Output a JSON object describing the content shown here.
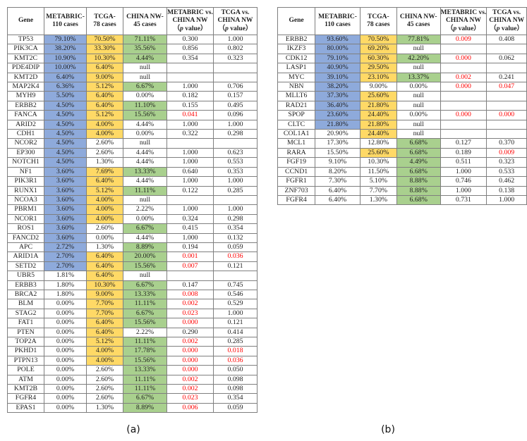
{
  "colors": {
    "metabric_fill": "#8EAADB",
    "tcga_fill": "#FFD966",
    "china_fill": "#A9D08E",
    "significant_red": "#FF0000",
    "grid_border": "#7f7f7f"
  },
  "tables": [
    {
      "name": "gene-mutation-table-a",
      "caption": "(a)",
      "headers": [
        {
          "lines": [
            "Gene"
          ]
        },
        {
          "lines": [
            "METABRIC-",
            "110 cases"
          ]
        },
        {
          "lines": [
            "TCGA-",
            "78 cases"
          ]
        },
        {
          "lines": [
            "CHINA NW-",
            "45 cases"
          ]
        },
        {
          "lines": [
            "METABRIC vs.",
            "CHINA NW",
            "（p value）"
          ]
        },
        {
          "lines": [
            "TCGA vs.",
            "CHINA NW",
            "（p value）"
          ]
        }
      ],
      "rows": [
        {
          "gene": "TP53",
          "metabric": "79.10%",
          "tcga": "70.50%",
          "china": "71.11%",
          "p1": "0.300",
          "p2": "1.000",
          "fills": "mtc",
          "red": ""
        },
        {
          "gene": "PIK3CA",
          "metabric": "38.20%",
          "tcga": "33.30%",
          "china": "35.56%",
          "p1": "0.856",
          "p2": "0.802",
          "fills": "mtc",
          "red": ""
        },
        {
          "gene": "KMT2C",
          "metabric": "10.90%",
          "tcga": "10.30%",
          "china": "4.44%",
          "p1": "0.354",
          "p2": "0.323",
          "fills": "mtc",
          "red": ""
        },
        {
          "gene": "PDE4DIP",
          "metabric": "10.00%",
          "tcga": "6.40%",
          "china": "null",
          "p1": "",
          "p2": "",
          "fills": "mt",
          "red": ""
        },
        {
          "gene": "KMT2D",
          "metabric": "6.40%",
          "tcga": "9.00%",
          "china": "null",
          "p1": "",
          "p2": "",
          "fills": "mt",
          "red": ""
        },
        {
          "gene": "MAP2K4",
          "metabric": "6.36%",
          "tcga": "5.12%",
          "china": "6.67%",
          "p1": "1.000",
          "p2": "0.706",
          "fills": "mtc",
          "red": ""
        },
        {
          "gene": "MYH9",
          "metabric": "5.50%",
          "tcga": "6.40%",
          "china": "0.00%",
          "p1": "0.182",
          "p2": "0.157",
          "fills": "mt",
          "red": ""
        },
        {
          "gene": "ERBB2",
          "metabric": "4.50%",
          "tcga": "6.40%",
          "china": "11.10%",
          "p1": "0.155",
          "p2": "0.495",
          "fills": "mtc",
          "red": ""
        },
        {
          "gene": "FANCA",
          "metabric": "4.50%",
          "tcga": "5.12%",
          "china": "15.56%",
          "p1": "0.041",
          "p2": "0.096",
          "fills": "mtc",
          "red": "1"
        },
        {
          "gene": "ARID2",
          "metabric": "4.50%",
          "tcga": "4.00%",
          "china": "4.44%",
          "p1": "1.000",
          "p2": "1.000",
          "fills": "mt",
          "red": ""
        },
        {
          "gene": "CDH1",
          "metabric": "4.50%",
          "tcga": "4.00%",
          "china": "0.00%",
          "p1": "0.322",
          "p2": "0.298",
          "fills": "mt",
          "red": ""
        },
        {
          "gene": "NCOR2",
          "metabric": "4.50%",
          "tcga": "2.60%",
          "china": "null",
          "p1": "",
          "p2": "",
          "fills": "m",
          "red": ""
        },
        {
          "gene": "EP300",
          "metabric": "4.50%",
          "tcga": "2.60%",
          "china": "4.44%",
          "p1": "1.000",
          "p2": "0.623",
          "fills": "m",
          "red": ""
        },
        {
          "gene": "NOTCH1",
          "metabric": "4.50%",
          "tcga": "1.30%",
          "china": "4.44%",
          "p1": "1.000",
          "p2": "0.553",
          "fills": "m",
          "red": ""
        },
        {
          "gene": "NF1",
          "metabric": "3.60%",
          "tcga": "7.69%",
          "china": "13.33%",
          "p1": "0.640",
          "p2": "0.353",
          "fills": "mtc",
          "red": ""
        },
        {
          "gene": "PIK3R1",
          "metabric": "3.60%",
          "tcga": "6.40%",
          "china": "4.44%",
          "p1": "1.000",
          "p2": "1.000",
          "fills": "mt",
          "red": ""
        },
        {
          "gene": "RUNX1",
          "metabric": "3.60%",
          "tcga": "5.12%",
          "china": "11.11%",
          "p1": "0.122",
          "p2": "0.285",
          "fills": "mtc",
          "red": ""
        },
        {
          "gene": "NCOA3",
          "metabric": "3.60%",
          "tcga": "4.00%",
          "china": "null",
          "p1": "",
          "p2": "",
          "fills": "mt",
          "red": ""
        },
        {
          "gene": "PBRM1",
          "metabric": "3.60%",
          "tcga": "4.00%",
          "china": "2.22%",
          "p1": "1.000",
          "p2": "1.000",
          "fills": "mt",
          "red": ""
        },
        {
          "gene": "NCOR1",
          "metabric": "3.60%",
          "tcga": "4.00%",
          "china": "0.00%",
          "p1": "0.324",
          "p2": "0.298",
          "fills": "mt",
          "red": ""
        },
        {
          "gene": "ROS1",
          "metabric": "3.60%",
          "tcga": "2.60%",
          "china": "6.67%",
          "p1": "0.415",
          "p2": "0.354",
          "fills": "mc",
          "red": ""
        },
        {
          "gene": "FANCD2",
          "metabric": "3.60%",
          "tcga": "0.00%",
          "china": "4.44%",
          "p1": "1.000",
          "p2": "0.132",
          "fills": "m",
          "red": ""
        },
        {
          "gene": "APC",
          "metabric": "2.72%",
          "tcga": "1.30%",
          "china": "8.89%",
          "p1": "0.194",
          "p2": "0.059",
          "fills": "mc",
          "red": ""
        },
        {
          "gene": "ARID1A",
          "metabric": "2.70%",
          "tcga": "6.40%",
          "china": "20.00%",
          "p1": "0.001",
          "p2": "0.036",
          "fills": "mtc",
          "red": "12"
        },
        {
          "gene": "SETD2",
          "metabric": "2.70%",
          "tcga": "6.40%",
          "china": "15.56%",
          "p1": "0.007",
          "p2": "0.121",
          "fills": "mtc",
          "red": "1"
        },
        {
          "gene": "UBR5",
          "metabric": "1.81%",
          "tcga": "6.40%",
          "china": "null",
          "p1": "",
          "p2": "",
          "fills": "t",
          "red": ""
        },
        {
          "gene": "ERBB3",
          "metabric": "1.80%",
          "tcga": "10.30%",
          "china": "6.67%",
          "p1": "0.147",
          "p2": "0.745",
          "fills": "tc",
          "red": ""
        },
        {
          "gene": "BRCA2",
          "metabric": "1.80%",
          "tcga": "9.00%",
          "china": "13.33%",
          "p1": "0.008",
          "p2": "0.546",
          "fills": "tc",
          "red": "1"
        },
        {
          "gene": "BLM",
          "metabric": "0.00%",
          "tcga": "7.70%",
          "china": "11.11%",
          "p1": "0.002",
          "p2": "0.529",
          "fills": "tc",
          "red": "1"
        },
        {
          "gene": "STAG2",
          "metabric": "0.00%",
          "tcga": "7.70%",
          "china": "6.67%",
          "p1": "0.023",
          "p2": "1.000",
          "fills": "tc",
          "red": "1"
        },
        {
          "gene": "FAT1",
          "metabric": "0.00%",
          "tcga": "6.40%",
          "china": "15.56%",
          "p1": "0.000",
          "p2": "0.121",
          "fills": "tc",
          "red": "1"
        },
        {
          "gene": "PTEN",
          "metabric": "0.00%",
          "tcga": "6.40%",
          "china": "2.22%",
          "p1": "0.290",
          "p2": "0.414",
          "fills": "t",
          "red": ""
        },
        {
          "gene": "TOP2A",
          "metabric": "0.00%",
          "tcga": "5.12%",
          "china": "11.11%",
          "p1": "0.002",
          "p2": "0.285",
          "fills": "tc",
          "red": "1"
        },
        {
          "gene": "PKHD1",
          "metabric": "0.00%",
          "tcga": "4.00%",
          "china": "17.78%",
          "p1": "0.000",
          "p2": "0.018",
          "fills": "tc",
          "red": "12"
        },
        {
          "gene": "PTPN13",
          "metabric": "0.00%",
          "tcga": "4.00%",
          "china": "15.56%",
          "p1": "0.000",
          "p2": "0.036",
          "fills": "tc",
          "red": "12"
        },
        {
          "gene": "POLE",
          "metabric": "0.00%",
          "tcga": "2.60%",
          "china": "13.33%",
          "p1": "0.000",
          "p2": "0.050",
          "fills": "c",
          "red": "1"
        },
        {
          "gene": "ATM",
          "metabric": "0.00%",
          "tcga": "2.60%",
          "china": "11.11%",
          "p1": "0.002",
          "p2": "0.098",
          "fills": "c",
          "red": "1"
        },
        {
          "gene": "KMT2B",
          "metabric": "0.00%",
          "tcga": "2.60%",
          "china": "11.11%",
          "p1": "0.002",
          "p2": "0.098",
          "fills": "c",
          "red": "1"
        },
        {
          "gene": "FGFR4",
          "metabric": "0.00%",
          "tcga": "2.60%",
          "china": "6.67%",
          "p1": "0.023",
          "p2": "0.354",
          "fills": "c",
          "red": "1"
        },
        {
          "gene": "EPAS1",
          "metabric": "0.00%",
          "tcga": "1.30%",
          "china": "8.89%",
          "p1": "0.006",
          "p2": "0.059",
          "fills": "c",
          "red": "1"
        }
      ]
    },
    {
      "name": "gene-mutation-table-b",
      "caption": "(b)",
      "headers": [
        {
          "lines": [
            "Gene"
          ]
        },
        {
          "lines": [
            "METABRIC-",
            "110 cases"
          ]
        },
        {
          "lines": [
            "TCGA-",
            "78 cases"
          ]
        },
        {
          "lines": [
            "CHINA NW-",
            "45 cases"
          ]
        },
        {
          "lines": [
            "METABRIC vs.",
            "CHINA NW",
            "（p value）"
          ]
        },
        {
          "lines": [
            "TCGA vs.",
            "CHINA NW",
            "（p value）"
          ]
        }
      ],
      "rows": [
        {
          "gene": "ERBB2",
          "metabric": "93.60%",
          "tcga": "70.50%",
          "china": "77.81%",
          "p1": "0.009",
          "p2": "0.408",
          "fills": "mtc",
          "red": "1"
        },
        {
          "gene": "IKZF3",
          "metabric": "80.00%",
          "tcga": "69.20%",
          "china": "null",
          "p1": "",
          "p2": "",
          "fills": "mt",
          "red": ""
        },
        {
          "gene": "CDK12",
          "metabric": "79.10%",
          "tcga": "60.30%",
          "china": "42.20%",
          "p1": "0.000",
          "p2": "0.062",
          "fills": "mtc",
          "red": "1"
        },
        {
          "gene": "LASP1",
          "metabric": "40.90%",
          "tcga": "29.50%",
          "china": "null",
          "p1": "",
          "p2": "",
          "fills": "mt",
          "red": ""
        },
        {
          "gene": "MYC",
          "metabric": "39.10%",
          "tcga": "23.10%",
          "china": "13.37%",
          "p1": "0.002",
          "p2": "0.241",
          "fills": "mtc",
          "red": "1"
        },
        {
          "gene": "NBN",
          "metabric": "38.20%",
          "tcga": "9.00%",
          "china": "0.00%",
          "p1": "0.000",
          "p2": "0.047",
          "fills": "m",
          "red": "12"
        },
        {
          "gene": "MLLT6",
          "metabric": "37.30%",
          "tcga": "25.60%",
          "china": "null",
          "p1": "",
          "p2": "",
          "fills": "mt",
          "red": ""
        },
        {
          "gene": "RAD21",
          "metabric": "36.40%",
          "tcga": "21.80%",
          "china": "null",
          "p1": "",
          "p2": "",
          "fills": "mt",
          "red": ""
        },
        {
          "gene": "SPOP",
          "metabric": "23.60%",
          "tcga": "24.40%",
          "china": "0.00%",
          "p1": "0.000",
          "p2": "0.000",
          "fills": "mt",
          "red": "12"
        },
        {
          "gene": "CLTC",
          "metabric": "21.80%",
          "tcga": "21.80%",
          "china": "null",
          "p1": "",
          "p2": "",
          "fills": "mt",
          "red": ""
        },
        {
          "gene": "COL1A1",
          "metabric": "20.90%",
          "tcga": "24.40%",
          "china": "null",
          "p1": "",
          "p2": "",
          "fills": "t",
          "red": ""
        },
        {
          "gene": "MCL1",
          "metabric": "17.30%",
          "tcga": "12.80%",
          "china": "6.68%",
          "p1": "0.127",
          "p2": "0.370",
          "fills": "c",
          "red": ""
        },
        {
          "gene": "RARA",
          "metabric": "15.50%",
          "tcga": "25.60%",
          "china": "6.68%",
          "p1": "0.189",
          "p2": "0.009",
          "fills": "tc",
          "red": "2"
        },
        {
          "gene": "FGF19",
          "metabric": "9.10%",
          "tcga": "10.30%",
          "china": "4.49%",
          "p1": "0.511",
          "p2": "0.323",
          "fills": "c",
          "red": ""
        },
        {
          "gene": "CCND1",
          "metabric": "8.20%",
          "tcga": "11.50%",
          "china": "6.68%",
          "p1": "1.000",
          "p2": "0.533",
          "fills": "c",
          "red": ""
        },
        {
          "gene": "FGFR1",
          "metabric": "7.30%",
          "tcga": "5.10%",
          "china": "8.88%",
          "p1": "0.746",
          "p2": "0.462",
          "fills": "c",
          "red": ""
        },
        {
          "gene": "ZNF703",
          "metabric": "6.40%",
          "tcga": "7.70%",
          "china": "8.88%",
          "p1": "1.000",
          "p2": "0.138",
          "fills": "c",
          "red": ""
        },
        {
          "gene": "FGFR4",
          "metabric": "6.40%",
          "tcga": "1.30%",
          "china": "6.68%",
          "p1": "0.731",
          "p2": "1.000",
          "fills": "c",
          "red": ""
        }
      ]
    }
  ]
}
